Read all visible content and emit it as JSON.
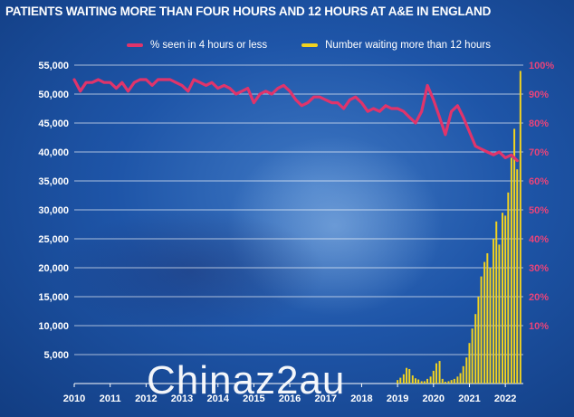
{
  "title": "PATIENTS WAITING MORE THAN FOUR HOURS AND 12 HOURS AT A&E IN ENGLAND",
  "watermark": "Chinaz2au",
  "colors": {
    "line": "#e0346b",
    "bar": "#f2d31f",
    "grid": "#ffffff",
    "right_axis": "#e8447a"
  },
  "chart_data": {
    "type": "bar+line",
    "legend_position": "top",
    "grid": true,
    "x_axis": {
      "labels": [
        "2010",
        "2011",
        "2012",
        "2013",
        "2014",
        "2015",
        "2016",
        "2017",
        "2018",
        "2019",
        "2020",
        "2021",
        "2022"
      ],
      "range": [
        2010.0,
        2022.5
      ]
    },
    "y_left": {
      "ticks": [
        "5,000",
        "10,000",
        "15,000",
        "20,000",
        "25,000",
        "30,000",
        "35,000",
        "40,000",
        "45,000",
        "50,000",
        "55,000"
      ],
      "range": [
        0,
        55000
      ]
    },
    "y_right": {
      "ticks": [
        "10%",
        "20%",
        "30%",
        "40%",
        "50%",
        "60%",
        "70%",
        "80%",
        "90%",
        "100%"
      ],
      "range": [
        -10,
        100
      ]
    },
    "series": [
      {
        "name": "% seen in 4 hours or less",
        "type": "line",
        "axis": "right",
        "x": [
          2010.0,
          2010.17,
          2010.33,
          2010.5,
          2010.67,
          2010.83,
          2011.0,
          2011.17,
          2011.33,
          2011.5,
          2011.67,
          2011.83,
          2012.0,
          2012.17,
          2012.33,
          2012.5,
          2012.67,
          2012.83,
          2013.0,
          2013.17,
          2013.33,
          2013.5,
          2013.67,
          2013.83,
          2014.0,
          2014.17,
          2014.33,
          2014.5,
          2014.67,
          2014.83,
          2015.0,
          2015.17,
          2015.33,
          2015.5,
          2015.67,
          2015.83,
          2016.0,
          2016.17,
          2016.33,
          2016.5,
          2016.67,
          2016.83,
          2017.0,
          2017.17,
          2017.33,
          2017.5,
          2017.67,
          2017.83,
          2018.0,
          2018.17,
          2018.33,
          2018.5,
          2018.67,
          2018.83,
          2019.0,
          2019.17,
          2019.33,
          2019.5,
          2019.67,
          2019.83,
          2020.0,
          2020.17,
          2020.33,
          2020.5,
          2020.67,
          2020.83,
          2021.0,
          2021.17,
          2021.33,
          2021.5,
          2021.67,
          2021.83,
          2022.0,
          2022.17,
          2022.33
        ],
        "values": [
          95,
          91,
          94,
          94,
          95,
          94,
          94,
          92,
          94,
          91,
          94,
          95,
          95,
          93,
          95,
          95,
          95,
          94,
          93,
          91,
          95,
          94,
          93,
          94,
          92,
          93,
          92,
          90,
          91,
          92,
          87,
          90,
          91,
          90,
          92,
          93,
          91,
          88,
          86,
          87,
          89,
          89,
          88,
          87,
          87,
          85,
          88,
          89,
          87,
          84,
          85,
          84,
          86,
          85,
          85,
          84,
          82,
          80,
          84,
          93,
          88,
          82,
          76,
          84,
          86,
          82,
          77,
          72,
          71,
          70,
          69,
          70,
          68,
          69,
          67
        ]
      },
      {
        "name": "Number waiting more than 12 hours",
        "type": "bar",
        "axis": "left",
        "x": [
          2019.0,
          2019.08,
          2019.17,
          2019.25,
          2019.33,
          2019.42,
          2019.5,
          2019.58,
          2019.67,
          2019.75,
          2019.83,
          2019.92,
          2020.0,
          2020.08,
          2020.17,
          2020.25,
          2020.33,
          2020.42,
          2020.5,
          2020.58,
          2020.67,
          2020.75,
          2020.83,
          2020.92,
          2021.0,
          2021.08,
          2021.17,
          2021.25,
          2021.33,
          2021.42,
          2021.5,
          2021.58,
          2021.67,
          2021.75,
          2021.83,
          2021.92,
          2022.0,
          2022.08,
          2022.17,
          2022.25,
          2022.33,
          2022.42
        ],
        "values": [
          600,
          1000,
          1600,
          2700,
          2500,
          1400,
          900,
          700,
          400,
          400,
          800,
          1200,
          2200,
          3500,
          3900,
          800,
          300,
          400,
          600,
          800,
          1200,
          1800,
          3000,
          4500,
          7000,
          9500,
          12000,
          15000,
          18500,
          21000,
          22500,
          20000,
          25000,
          28000,
          24000,
          29500,
          29000,
          33000,
          39000,
          44000,
          37000,
          54000
        ]
      }
    ]
  }
}
